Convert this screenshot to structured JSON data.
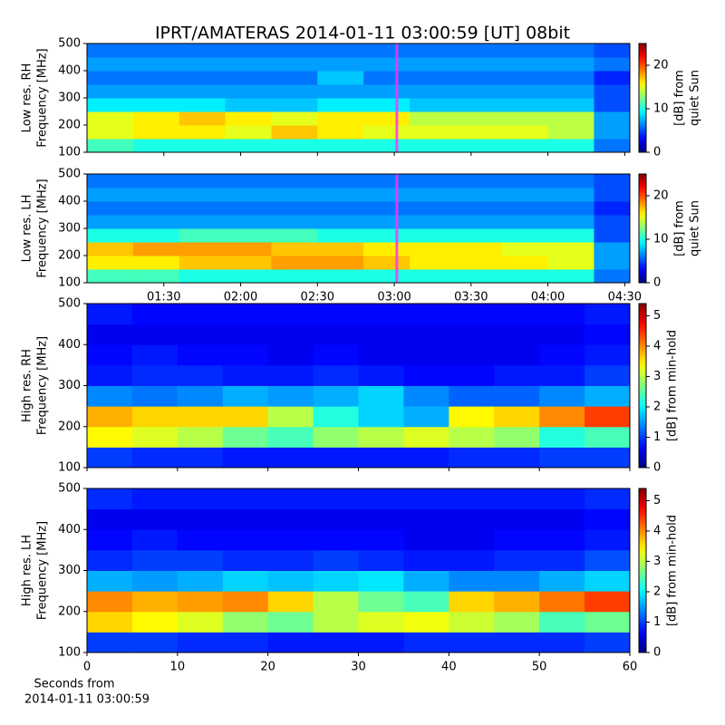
{
  "chart_data": [
    {
      "type": "heatmap",
      "title": "IPRT/AMATERAS 2014-01-11 03:00:59 [UT]   08bit",
      "ylabel": [
        "Low res. RH",
        "Frequency [MHz]"
      ],
      "colormap": "jet",
      "x_bins": [
        60,
        78,
        96,
        114,
        132,
        150,
        168,
        186,
        204,
        222,
        240,
        258,
        272
      ],
      "y_bins": [
        100,
        150,
        200,
        250,
        300,
        350,
        400,
        450,
        500
      ],
      "values": [
        [
          11,
          10,
          10,
          10,
          10,
          10,
          10,
          10,
          10,
          10,
          10,
          6
        ],
        [
          15,
          16,
          16,
          15,
          17,
          16,
          15,
          15,
          15,
          15,
          14,
          7
        ],
        [
          15,
          16,
          17,
          16,
          15,
          16,
          16,
          14,
          14,
          14,
          14,
          7
        ],
        [
          9,
          9,
          9,
          8,
          8,
          9,
          9,
          8,
          8,
          8,
          8,
          5
        ],
        [
          7,
          7,
          7,
          7,
          7,
          7,
          7,
          7,
          7,
          7,
          7,
          5
        ],
        [
          6,
          6,
          6,
          6,
          6,
          8,
          6,
          6,
          6,
          6,
          6,
          4
        ],
        [
          7,
          7,
          7,
          7,
          7,
          7,
          7,
          7,
          7,
          7,
          7,
          6
        ],
        [
          6,
          6,
          6,
          6,
          6,
          6,
          6,
          6,
          6,
          6,
          6,
          5
        ]
      ],
      "xlim": [
        60,
        272
      ],
      "xticks": [
        90,
        120,
        150,
        180,
        210,
        240,
        270
      ],
      "xtick_labels": false,
      "ylim": [
        100,
        500
      ],
      "yticks": [
        100,
        200,
        300,
        400,
        500
      ],
      "marker_x": 181,
      "marker_color": "#ff33ff",
      "clim": [
        0,
        25
      ],
      "cticks": [
        0,
        10,
        20
      ],
      "colorbar_label": [
        "[dB] from",
        "quiet Sun"
      ]
    },
    {
      "type": "heatmap",
      "ylabel": [
        "Low res. LH",
        "Frequency [MHz]"
      ],
      "colormap": "jet",
      "x_bins": [
        60,
        78,
        96,
        114,
        132,
        150,
        168,
        186,
        204,
        222,
        240,
        258,
        272
      ],
      "y_bins": [
        100,
        150,
        200,
        250,
        300,
        350,
        400,
        450,
        500
      ],
      "values": [
        [
          11,
          11,
          10,
          10,
          10,
          10,
          10,
          10,
          10,
          10,
          10,
          6
        ],
        [
          16,
          16,
          17,
          17,
          18,
          18,
          17,
          16,
          16,
          16,
          15,
          7
        ],
        [
          17,
          18,
          18,
          18,
          17,
          17,
          16,
          16,
          16,
          15,
          15,
          7
        ],
        [
          10,
          10,
          11,
          11,
          11,
          10,
          10,
          10,
          10,
          10,
          10,
          5
        ],
        [
          7,
          7,
          7,
          7,
          7,
          7,
          7,
          7,
          7,
          7,
          7,
          5
        ],
        [
          6,
          6,
          6,
          6,
          6,
          6,
          6,
          6,
          6,
          6,
          6,
          4
        ],
        [
          7,
          7,
          7,
          7,
          7,
          7,
          7,
          7,
          7,
          7,
          7,
          5
        ],
        [
          6,
          6,
          6,
          6,
          6,
          6,
          6,
          6,
          6,
          6,
          6,
          5
        ]
      ],
      "xlim": [
        60,
        272
      ],
      "xticks": [
        {
          "value": 90,
          "label": "01:30"
        },
        {
          "value": 120,
          "label": "02:00"
        },
        {
          "value": 150,
          "label": "02:30"
        },
        {
          "value": 180,
          "label": "03:00"
        },
        {
          "value": 210,
          "label": "03:30"
        },
        {
          "value": 240,
          "label": "04:00"
        },
        {
          "value": 270,
          "label": "04:30"
        }
      ],
      "xtick_labels": true,
      "ylim": [
        100,
        500
      ],
      "yticks": [
        100,
        200,
        300,
        400,
        500
      ],
      "marker_x": 181,
      "marker_color": "#ff33ff",
      "clim": [
        0,
        25
      ],
      "cticks": [
        0,
        10,
        20
      ],
      "colorbar_label": [
        "[dB] from",
        "quiet Sun"
      ]
    },
    {
      "type": "heatmap",
      "ylabel": [
        "High res. RH",
        "Frequency [MHz]"
      ],
      "colormap": "jet",
      "x_bins": [
        0,
        5,
        10,
        15,
        20,
        25,
        30,
        35,
        40,
        45,
        50,
        55,
        60
      ],
      "y_bins": [
        100,
        150,
        200,
        250,
        300,
        350,
        400,
        450,
        500
      ],
      "values": [
        [
          1.0,
          0.9,
          0.9,
          0.8,
          0.8,
          0.8,
          0.8,
          0.8,
          0.9,
          0.9,
          1.0,
          1.0
        ],
        [
          3.4,
          3.2,
          3.0,
          2.6,
          2.4,
          2.8,
          3.0,
          3.2,
          3.0,
          2.8,
          2.2,
          2.4
        ],
        [
          3.8,
          3.6,
          3.6,
          3.6,
          3.0,
          2.2,
          1.8,
          1.6,
          3.4,
          3.6,
          4.0,
          4.4
        ],
        [
          1.4,
          1.3,
          1.4,
          1.6,
          1.5,
          1.6,
          1.8,
          1.4,
          1.2,
          1.2,
          1.4,
          1.6
        ],
        [
          0.8,
          0.9,
          0.9,
          0.8,
          0.8,
          0.9,
          0.8,
          0.7,
          0.7,
          0.8,
          0.8,
          1.0
        ],
        [
          0.7,
          0.8,
          0.7,
          0.7,
          0.6,
          0.7,
          0.6,
          0.6,
          0.6,
          0.6,
          0.7,
          0.8
        ],
        [
          0.6,
          0.6,
          0.6,
          0.6,
          0.6,
          0.6,
          0.6,
          0.6,
          0.6,
          0.6,
          0.6,
          0.7
        ],
        [
          0.8,
          0.7,
          0.7,
          0.7,
          0.7,
          0.7,
          0.7,
          0.7,
          0.7,
          0.7,
          0.7,
          0.8
        ]
      ],
      "xlim": [
        0,
        60
      ],
      "xticks": [
        0,
        10,
        20,
        30,
        40,
        50,
        60
      ],
      "xtick_labels": false,
      "ylim": [
        100,
        500
      ],
      "yticks": [
        100,
        200,
        300,
        400,
        500
      ],
      "clim": [
        0,
        5.4
      ],
      "cticks": [
        0,
        1,
        2,
        3,
        4,
        5
      ],
      "colorbar_label": [
        "[dB] from min-hold"
      ]
    },
    {
      "type": "heatmap",
      "ylabel": [
        "High res. LH",
        "Frequency [MHz]"
      ],
      "colormap": "jet",
      "x_bins": [
        0,
        5,
        10,
        15,
        20,
        25,
        30,
        35,
        40,
        45,
        50,
        55,
        60
      ],
      "y_bins": [
        100,
        150,
        200,
        250,
        300,
        350,
        400,
        450,
        500
      ],
      "values": [
        [
          1.0,
          1.0,
          0.9,
          0.9,
          0.8,
          0.8,
          0.8,
          0.9,
          0.9,
          0.9,
          0.9,
          1.0
        ],
        [
          3.6,
          3.4,
          3.2,
          2.8,
          2.6,
          3.0,
          3.2,
          3.3,
          3.1,
          2.9,
          2.4,
          2.6
        ],
        [
          4.0,
          3.8,
          3.9,
          4.0,
          3.6,
          3.0,
          2.6,
          2.4,
          3.6,
          3.8,
          4.1,
          4.4
        ],
        [
          1.6,
          1.5,
          1.6,
          1.8,
          1.7,
          1.8,
          1.9,
          1.6,
          1.4,
          1.4,
          1.6,
          1.8
        ],
        [
          0.9,
          1.0,
          1.0,
          0.9,
          0.9,
          1.0,
          0.9,
          0.8,
          0.8,
          0.9,
          0.9,
          1.1
        ],
        [
          0.7,
          0.8,
          0.7,
          0.7,
          0.7,
          0.7,
          0.7,
          0.6,
          0.6,
          0.7,
          0.7,
          0.8
        ],
        [
          0.6,
          0.6,
          0.6,
          0.6,
          0.6,
          0.6,
          0.6,
          0.6,
          0.6,
          0.6,
          0.6,
          0.7
        ],
        [
          0.9,
          0.8,
          0.8,
          0.8,
          0.8,
          0.8,
          0.8,
          0.8,
          0.8,
          0.8,
          0.8,
          0.9
        ]
      ],
      "xlim": [
        0,
        60
      ],
      "xticks": [
        0,
        10,
        20,
        30,
        40,
        50,
        60
      ],
      "xtick_labels": true,
      "xlabel": [
        "Seconds from",
        "2014-01-11 03:00:59"
      ],
      "ylim": [
        100,
        500
      ],
      "yticks": [
        100,
        200,
        300,
        400,
        500
      ],
      "clim": [
        0,
        5.4
      ],
      "cticks": [
        0,
        1,
        2,
        3,
        4,
        5
      ],
      "colorbar_label": [
        "[dB] from min-hold"
      ]
    }
  ]
}
